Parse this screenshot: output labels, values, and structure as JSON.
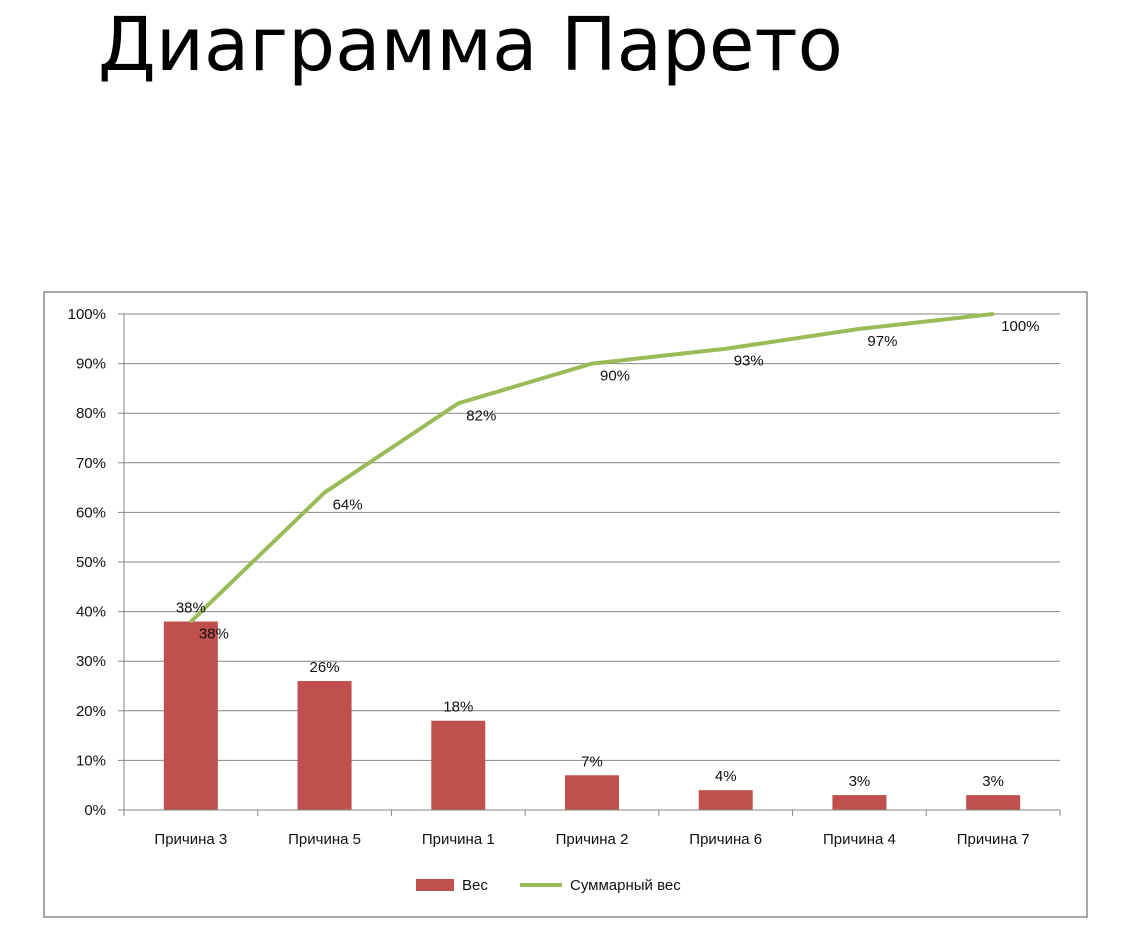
{
  "slide": {
    "title": "Диаграмма Парето"
  },
  "chart_data": {
    "type": "bar",
    "categories": [
      "Причина 3",
      "Причина 5",
      "Причина 1",
      "Причина 2",
      "Причина 6",
      "Причина 4",
      "Причина 7"
    ],
    "series": [
      {
        "name": "Вес",
        "type": "bar",
        "color": "#c0504d",
        "values": [
          38,
          26,
          18,
          7,
          4,
          3,
          3
        ],
        "labels": [
          "38%",
          "26%",
          "18%",
          "7%",
          "4%",
          "3%",
          "3%"
        ]
      },
      {
        "name": "Суммарный вес",
        "type": "line",
        "color": "#9bbb59",
        "values": [
          38,
          64,
          82,
          90,
          93,
          97,
          100
        ],
        "labels": [
          "38%",
          "64%",
          "82%",
          "90%",
          "93%",
          "97%",
          "100%"
        ]
      }
    ],
    "ylim": [
      0,
      100
    ],
    "yticks": [
      "0%",
      "10%",
      "20%",
      "30%",
      "40%",
      "50%",
      "60%",
      "70%",
      "80%",
      "90%",
      "100%"
    ],
    "grid": true,
    "legend": "bottom"
  }
}
